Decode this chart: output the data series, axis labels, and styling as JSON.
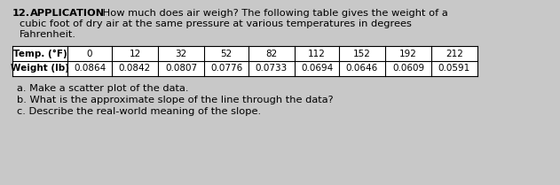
{
  "problem_number": "12.",
  "label_application": "APPLICATION",
  "text_line1": " How much does air weigh? The following table gives the weight of a",
  "text_line2": "cubic foot of dry air at the same pressure at various temperatures in degrees",
  "text_line3": "Fahrenheit.",
  "row1_header": "Temp. (°F)",
  "row2_header": "Weight (lb)",
  "temperatures": [
    "0",
    "12",
    "32",
    "52",
    "82",
    "112",
    "152",
    "192",
    "212"
  ],
  "weights": [
    "0.0864",
    "0.0842",
    "0.0807",
    "0.0776",
    "0.0733",
    "0.0694",
    "0.0646",
    "0.0609",
    "0.0591"
  ],
  "sub_a": "a. Make a scatter plot of the data.",
  "sub_b": "b. What is the approximate slope of the line through the data?",
  "sub_c": "c. Describe the real-world meaning of the slope.",
  "bg_color": "#c8c8c8",
  "text_color": "#000000",
  "table_bg": "#ffffff"
}
